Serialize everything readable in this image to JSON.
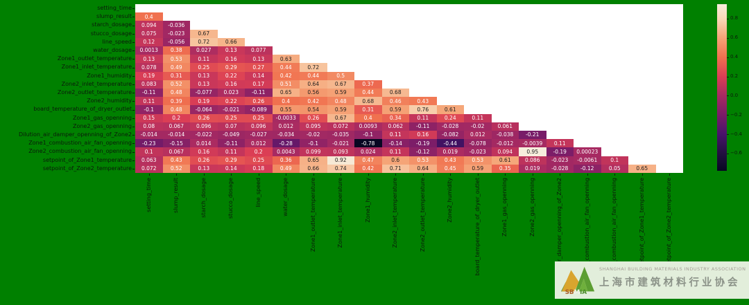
{
  "background_color": "#008000",
  "chart_data": {
    "type": "heatmap",
    "description": "Lower-triangular annotated correlation matrix heatmap (diagonal and upper triangle masked white) on a green figure background",
    "labels": [
      "setting_time",
      "slump_result",
      "starch_dosage",
      "stucco_dosage",
      "line_speed",
      "water_dosage",
      "Zone1_outlet_temperature",
      "Zone1_inlet_temperature",
      "Zone1_humidity",
      "Zone2_inlet_temperature",
      "Zone2_outlet_temperature",
      "Zone2_humidity",
      "board_temperature_of_dryer_outlet",
      "Zone1_gas_openning",
      "Zone2_gas_openning",
      "Dilution_air_damper_openning_of_Zone2",
      "Zone1_combustion_air_fan_openning",
      "Zone2_combustion_air_fan_openning",
      "setpoint_of_Zone1_temperature",
      "setpoint_of_Zone2_temperature"
    ],
    "matrix": [
      [],
      [
        0.4
      ],
      [
        0.094,
        -0.036
      ],
      [
        0.075,
        -0.023,
        0.67
      ],
      [
        0.12,
        -0.056,
        0.72,
        0.66
      ],
      [
        0.0013,
        0.38,
        0.027,
        0.13,
        0.077
      ],
      [
        0.13,
        0.53,
        0.11,
        0.16,
        0.13,
        0.63
      ],
      [
        0.078,
        0.49,
        0.25,
        0.29,
        0.27,
        0.44,
        0.72
      ],
      [
        0.19,
        0.31,
        0.13,
        0.22,
        0.14,
        0.42,
        0.44,
        0.5
      ],
      [
        0.083,
        0.52,
        0.13,
        0.16,
        0.17,
        0.51,
        0.64,
        0.67,
        0.37
      ],
      [
        -0.11,
        0.48,
        -0.077,
        0.023,
        -0.11,
        0.65,
        0.56,
        0.59,
        0.44,
        0.68
      ],
      [
        0.11,
        0.39,
        0.19,
        0.22,
        0.26,
        0.4,
        0.42,
        0.48,
        0.68,
        0.46,
        0.43
      ],
      [
        -0.1,
        0.48,
        -0.064,
        -0.021,
        -0.089,
        0.55,
        0.54,
        0.59,
        0.31,
        0.59,
        0.76,
        0.61
      ],
      [
        0.15,
        0.2,
        0.26,
        0.25,
        0.25,
        -0.0033,
        0.26,
        0.67,
        0.4,
        0.34,
        0.11,
        0.24,
        0.11
      ],
      [
        0.08,
        0.067,
        0.096,
        0.07,
        0.096,
        0.012,
        0.095,
        0.072,
        0.0093,
        0.062,
        -0.11,
        -0.028,
        -0.02,
        0.061
      ],
      [
        -0.014,
        -0.014,
        -0.022,
        -0.049,
        -0.027,
        -0.034,
        -0.02,
        -0.035,
        -0.1,
        0.11,
        0.16,
        -0.082,
        0.012,
        -0.038,
        -0.21
      ],
      [
        -0.23,
        -0.15,
        0.014,
        -0.11,
        0.012,
        -0.28,
        -0.1,
        -0.021,
        -0.78,
        -0.14,
        -0.19,
        -0.44,
        -0.078,
        -0.012,
        -0.0039,
        0.11
      ],
      [
        0.1,
        0.067,
        0.16,
        0.11,
        0.2,
        0.0043,
        0.099,
        0.093,
        0.024,
        0.11,
        -0.12,
        0.019,
        -0.023,
        0.094,
        0.95,
        -0.19,
        0.00023
      ],
      [
        0.063,
        0.43,
        0.26,
        0.29,
        0.25,
        0.36,
        0.65,
        0.92,
        0.47,
        0.6,
        0.53,
        0.43,
        0.53,
        0.61,
        0.086,
        -0.023,
        -0.0061,
        0.1
      ],
      [
        0.072,
        0.52,
        0.13,
        0.14,
        0.18,
        0.49,
        0.66,
        0.74,
        0.42,
        0.71,
        0.64,
        0.45,
        0.59,
        0.35,
        0.019,
        -0.028,
        -0.12,
        0.05,
        0.65
      ]
    ],
    "vmin": -0.78,
    "vmax": 0.95,
    "mask_color": "#ffffff",
    "colormap": "rocket",
    "colormap_stops": [
      [
        0.0,
        "#070722"
      ],
      [
        0.104,
        "#221040"
      ],
      [
        0.22,
        "#49136B"
      ],
      [
        0.335,
        "#7A1C68"
      ],
      [
        0.451,
        "#A72A62"
      ],
      [
        0.566,
        "#DB3E55"
      ],
      [
        0.682,
        "#F0714F"
      ],
      [
        0.798,
        "#F5A477"
      ],
      [
        0.913,
        "#F8D9B8"
      ],
      [
        1.0,
        "#F6EDDC"
      ]
    ],
    "colorbar": {
      "position": "right",
      "tick_labels": [
        "0.8",
        "0.6",
        "0.4",
        "0.2",
        "0.0",
        "−0.2",
        "−0.4",
        "−0.6"
      ],
      "tick_values": [
        0.8,
        0.6,
        0.4,
        0.2,
        0.0,
        -0.2,
        -0.4,
        -0.6
      ]
    },
    "annotation_text_colors": {
      "light_cells": "#1d1d1d",
      "dark_cells": "#ffffff"
    },
    "grid": false
  },
  "logo": {
    "org_en": "SHANGHAI BUILDING MATERIALS INDUSTRY ASSOCIATION",
    "org_zh": "上海市建筑材料行业协会",
    "emblem_letters_1": "SB",
    "emblem_letters_2": "M",
    "emblem_letters_3": "IA",
    "emblem_colors": {
      "gold": "#D9A52E",
      "green": "#5C9E32",
      "background": "#e2eedb"
    }
  }
}
